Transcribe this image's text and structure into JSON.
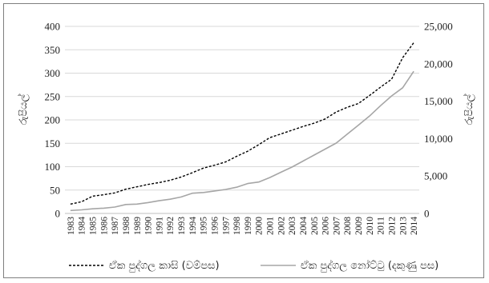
{
  "chart_data": {
    "type": "line",
    "title": "",
    "ylabel_left": "රුපියල්",
    "ylabel_right": "රුපියල්",
    "ylim_left": [
      0,
      400
    ],
    "ylim_right": [
      0,
      25000
    ],
    "yticks_left": [
      "0",
      "50",
      "100",
      "150",
      "200",
      "250",
      "300",
      "350",
      "400"
    ],
    "yticks_right": [
      "0",
      "5,000",
      "10,000",
      "15,000",
      "20,000",
      "25,000"
    ],
    "x": [
      "1983",
      "1984",
      "1985",
      "1986",
      "1987",
      "1988",
      "1989",
      "1990",
      "1991",
      "1992",
      "1993",
      "1994",
      "1995",
      "1996",
      "1997",
      "1998",
      "1999",
      "2000",
      "2001",
      "2002",
      "2003",
      "2004",
      "2005",
      "2006",
      "2007",
      "2008",
      "2009",
      "2010",
      "2011",
      "2012",
      "2013",
      "2014"
    ],
    "grid": "horizontal",
    "legend_position": "bottom",
    "series": [
      {
        "name": "ඒක පුද්ගල කාසි (වම්පස)",
        "axis": "left",
        "style": "dashed",
        "color": "#000000",
        "values": [
          20,
          25,
          37,
          40,
          44,
          52,
          57,
          62,
          66,
          71,
          78,
          87,
          97,
          103,
          110,
          122,
          133,
          147,
          162,
          170,
          178,
          186,
          193,
          202,
          217,
          227,
          235,
          252,
          270,
          287,
          333,
          365
        ]
      },
      {
        "name": "ඒක පුද්ගල නෝට්ටු (දකුණු පස)",
        "axis": "right",
        "style": "solid",
        "color": "#a6a6a6",
        "values": [
          400,
          480,
          620,
          700,
          850,
          1200,
          1250,
          1450,
          1700,
          1900,
          2200,
          2700,
          2800,
          3000,
          3200,
          3500,
          4000,
          4200,
          4800,
          5500,
          6200,
          7000,
          7800,
          8600,
          9400,
          10600,
          11800,
          13000,
          14400,
          15700,
          16800,
          19000
        ]
      }
    ]
  }
}
